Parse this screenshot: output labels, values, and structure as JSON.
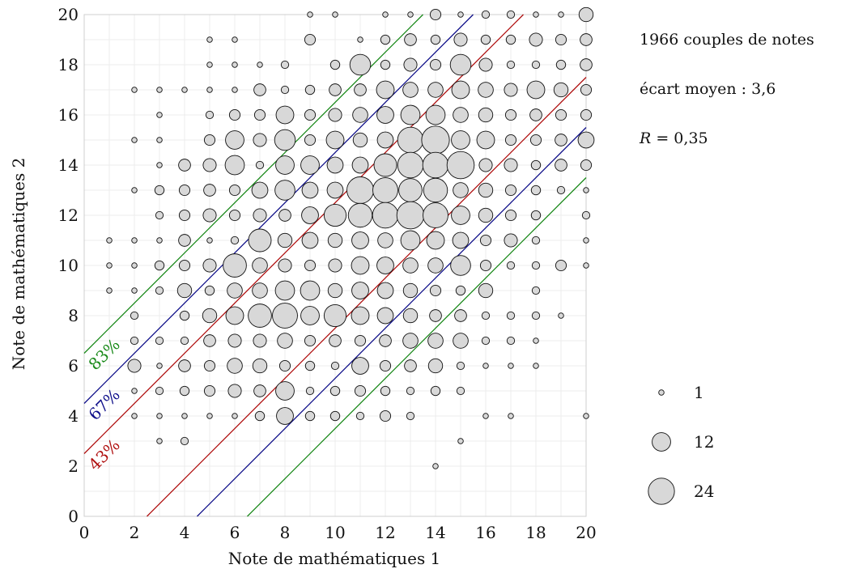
{
  "chart_data": {
    "type": "scatter",
    "subtype": "bubble",
    "xlabel": "Note de mathématiques 1",
    "ylabel": "Note de mathématiques 2",
    "xlim": [
      0,
      20
    ],
    "ylim": [
      0,
      20
    ],
    "x_ticks": [
      "0",
      "2",
      "4",
      "6",
      "8",
      "10",
      "12",
      "14",
      "16",
      "18",
      "20"
    ],
    "y_ticks": [
      "0",
      "2",
      "4",
      "6",
      "8",
      "10",
      "12",
      "14",
      "16",
      "18",
      "20"
    ],
    "grid": true,
    "bubble_color": "#d8d8d8",
    "bubble_stroke": "#111111",
    "stats": {
      "pairs": "1966 couples de notes",
      "mean_gap": "écart moyen : 3,6",
      "r_symbol": "R",
      "r_value": " = 0,35"
    },
    "legend": {
      "placement": "right",
      "entries": [
        {
          "label": "1",
          "count": 1
        },
        {
          "label": "12",
          "count": 12
        },
        {
          "label": "24",
          "count": 24
        }
      ]
    },
    "bands": [
      {
        "label": "43%",
        "offset": 2.5,
        "color": "#b01010"
      },
      {
        "label": "67%",
        "offset": 4.5,
        "color": "#10108a"
      },
      {
        "label": "83%",
        "offset": 6.5,
        "color": "#1a8a1a"
      }
    ],
    "points": [
      [
        9,
        20,
        1
      ],
      [
        10,
        20,
        1
      ],
      [
        12,
        20,
        1
      ],
      [
        13,
        20,
        1
      ],
      [
        14,
        20,
        4
      ],
      [
        15,
        20,
        1
      ],
      [
        16,
        20,
        2
      ],
      [
        17,
        20,
        2
      ],
      [
        18,
        20,
        1
      ],
      [
        19,
        20,
        1
      ],
      [
        20,
        20,
        7
      ],
      [
        5,
        19,
        1
      ],
      [
        6,
        19,
        1
      ],
      [
        9,
        19,
        4
      ],
      [
        11,
        19,
        1
      ],
      [
        12,
        19,
        3
      ],
      [
        13,
        19,
        5
      ],
      [
        14,
        19,
        3
      ],
      [
        15,
        19,
        6
      ],
      [
        16,
        19,
        3
      ],
      [
        17,
        19,
        3
      ],
      [
        18,
        19,
        6
      ],
      [
        19,
        19,
        4
      ],
      [
        20,
        19,
        5
      ],
      [
        5,
        18,
        1
      ],
      [
        6,
        18,
        1
      ],
      [
        7,
        18,
        1
      ],
      [
        8,
        18,
        2
      ],
      [
        10,
        18,
        3
      ],
      [
        11,
        18,
        15
      ],
      [
        12,
        18,
        3
      ],
      [
        13,
        18,
        6
      ],
      [
        14,
        18,
        4
      ],
      [
        15,
        18,
        15
      ],
      [
        16,
        18,
        6
      ],
      [
        17,
        18,
        2
      ],
      [
        18,
        18,
        2
      ],
      [
        19,
        18,
        3
      ],
      [
        20,
        18,
        5
      ],
      [
        2,
        17,
        1
      ],
      [
        3,
        17,
        1
      ],
      [
        4,
        17,
        1
      ],
      [
        5,
        17,
        1
      ],
      [
        6,
        17,
        1
      ],
      [
        7,
        17,
        5
      ],
      [
        8,
        17,
        2
      ],
      [
        9,
        17,
        3
      ],
      [
        10,
        17,
        5
      ],
      [
        11,
        17,
        5
      ],
      [
        12,
        17,
        11
      ],
      [
        13,
        17,
        8
      ],
      [
        14,
        17,
        8
      ],
      [
        15,
        17,
        11
      ],
      [
        16,
        17,
        8
      ],
      [
        17,
        17,
        6
      ],
      [
        18,
        17,
        11
      ],
      [
        19,
        17,
        7
      ],
      [
        20,
        17,
        4
      ],
      [
        3,
        16,
        1
      ],
      [
        5,
        16,
        2
      ],
      [
        6,
        16,
        4
      ],
      [
        7,
        16,
        4
      ],
      [
        8,
        16,
        11
      ],
      [
        9,
        16,
        4
      ],
      [
        10,
        16,
        6
      ],
      [
        11,
        16,
        8
      ],
      [
        12,
        16,
        10
      ],
      [
        13,
        16,
        13
      ],
      [
        14,
        16,
        13
      ],
      [
        15,
        16,
        8
      ],
      [
        16,
        16,
        7
      ],
      [
        17,
        16,
        4
      ],
      [
        18,
        16,
        5
      ],
      [
        19,
        16,
        4
      ],
      [
        20,
        16,
        4
      ],
      [
        2,
        15,
        1
      ],
      [
        3,
        15,
        1
      ],
      [
        5,
        15,
        4
      ],
      [
        6,
        15,
        12
      ],
      [
        7,
        15,
        6
      ],
      [
        8,
        15,
        15
      ],
      [
        9,
        15,
        4
      ],
      [
        10,
        15,
        11
      ],
      [
        11,
        15,
        7
      ],
      [
        12,
        15,
        9
      ],
      [
        13,
        15,
        23
      ],
      [
        14,
        15,
        27
      ],
      [
        15,
        15,
        12
      ],
      [
        16,
        15,
        11
      ],
      [
        17,
        15,
        4
      ],
      [
        18,
        15,
        4
      ],
      [
        19,
        15,
        5
      ],
      [
        20,
        15,
        9
      ],
      [
        3,
        14,
        1
      ],
      [
        4,
        14,
        5
      ],
      [
        5,
        14,
        6
      ],
      [
        6,
        14,
        13
      ],
      [
        7,
        14,
        2
      ],
      [
        8,
        14,
        12
      ],
      [
        9,
        14,
        12
      ],
      [
        10,
        14,
        9
      ],
      [
        11,
        14,
        9
      ],
      [
        12,
        14,
        18
      ],
      [
        13,
        14,
        23
      ],
      [
        14,
        14,
        23
      ],
      [
        15,
        14,
        26
      ],
      [
        16,
        14,
        6
      ],
      [
        17,
        14,
        6
      ],
      [
        18,
        14,
        3
      ],
      [
        19,
        14,
        5
      ],
      [
        20,
        14,
        4
      ],
      [
        2,
        13,
        1
      ],
      [
        3,
        13,
        3
      ],
      [
        4,
        13,
        4
      ],
      [
        5,
        13,
        5
      ],
      [
        6,
        13,
        4
      ],
      [
        7,
        13,
        9
      ],
      [
        8,
        13,
        14
      ],
      [
        9,
        13,
        9
      ],
      [
        10,
        13,
        9
      ],
      [
        11,
        13,
        25
      ],
      [
        12,
        13,
        22
      ],
      [
        13,
        13,
        19
      ],
      [
        14,
        13,
        20
      ],
      [
        15,
        13,
        8
      ],
      [
        16,
        13,
        7
      ],
      [
        17,
        13,
        4
      ],
      [
        18,
        13,
        3
      ],
      [
        19,
        13,
        2
      ],
      [
        20,
        13,
        1
      ],
      [
        3,
        12,
        2
      ],
      [
        4,
        12,
        4
      ],
      [
        5,
        12,
        6
      ],
      [
        6,
        12,
        4
      ],
      [
        7,
        12,
        6
      ],
      [
        8,
        12,
        5
      ],
      [
        9,
        12,
        10
      ],
      [
        10,
        12,
        17
      ],
      [
        11,
        12,
        20
      ],
      [
        12,
        12,
        23
      ],
      [
        13,
        12,
        26
      ],
      [
        14,
        12,
        22
      ],
      [
        15,
        12,
        12
      ],
      [
        16,
        12,
        7
      ],
      [
        17,
        12,
        4
      ],
      [
        18,
        12,
        3
      ],
      [
        20,
        12,
        2
      ],
      [
        1,
        11,
        1
      ],
      [
        2,
        11,
        1
      ],
      [
        3,
        11,
        1
      ],
      [
        4,
        11,
        5
      ],
      [
        5,
        11,
        1
      ],
      [
        6,
        11,
        2
      ],
      [
        7,
        11,
        18
      ],
      [
        8,
        11,
        7
      ],
      [
        9,
        11,
        9
      ],
      [
        10,
        11,
        7
      ],
      [
        11,
        11,
        10
      ],
      [
        12,
        11,
        8
      ],
      [
        13,
        11,
        13
      ],
      [
        14,
        11,
        11
      ],
      [
        15,
        11,
        9
      ],
      [
        16,
        11,
        4
      ],
      [
        17,
        11,
        6
      ],
      [
        18,
        11,
        2
      ],
      [
        20,
        11,
        1
      ],
      [
        1,
        10,
        1
      ],
      [
        2,
        10,
        1
      ],
      [
        3,
        10,
        3
      ],
      [
        4,
        10,
        4
      ],
      [
        5,
        10,
        6
      ],
      [
        6,
        10,
        19
      ],
      [
        7,
        10,
        8
      ],
      [
        8,
        10,
        6
      ],
      [
        9,
        10,
        4
      ],
      [
        10,
        10,
        6
      ],
      [
        11,
        10,
        11
      ],
      [
        12,
        10,
        10
      ],
      [
        13,
        10,
        8
      ],
      [
        14,
        10,
        8
      ],
      [
        15,
        10,
        14
      ],
      [
        16,
        10,
        4
      ],
      [
        17,
        10,
        2
      ],
      [
        18,
        10,
        2
      ],
      [
        19,
        10,
        4
      ],
      [
        20,
        10,
        1
      ],
      [
        1,
        9,
        1
      ],
      [
        2,
        9,
        1
      ],
      [
        3,
        9,
        2
      ],
      [
        4,
        9,
        7
      ],
      [
        5,
        9,
        3
      ],
      [
        6,
        9,
        8
      ],
      [
        7,
        9,
        8
      ],
      [
        8,
        9,
        13
      ],
      [
        9,
        9,
        13
      ],
      [
        10,
        9,
        7
      ],
      [
        11,
        9,
        10
      ],
      [
        12,
        9,
        9
      ],
      [
        13,
        9,
        7
      ],
      [
        14,
        9,
        4
      ],
      [
        15,
        9,
        3
      ],
      [
        16,
        9,
        7
      ],
      [
        18,
        9,
        2
      ],
      [
        2,
        8,
        2
      ],
      [
        4,
        8,
        3
      ],
      [
        5,
        8,
        7
      ],
      [
        6,
        8,
        11
      ],
      [
        7,
        8,
        19
      ],
      [
        8,
        8,
        22
      ],
      [
        9,
        8,
        12
      ],
      [
        10,
        8,
        17
      ],
      [
        11,
        8,
        11
      ],
      [
        12,
        8,
        9
      ],
      [
        13,
        8,
        7
      ],
      [
        14,
        8,
        5
      ],
      [
        15,
        8,
        5
      ],
      [
        16,
        8,
        2
      ],
      [
        17,
        8,
        2
      ],
      [
        18,
        8,
        2
      ],
      [
        19,
        8,
        1
      ],
      [
        2,
        7,
        2
      ],
      [
        3,
        7,
        2
      ],
      [
        4,
        7,
        2
      ],
      [
        5,
        7,
        5
      ],
      [
        6,
        7,
        6
      ],
      [
        7,
        7,
        6
      ],
      [
        8,
        7,
        8
      ],
      [
        9,
        7,
        4
      ],
      [
        10,
        7,
        5
      ],
      [
        11,
        7,
        4
      ],
      [
        12,
        7,
        5
      ],
      [
        13,
        7,
        8
      ],
      [
        14,
        7,
        8
      ],
      [
        15,
        7,
        8
      ],
      [
        16,
        7,
        2
      ],
      [
        17,
        7,
        2
      ],
      [
        18,
        7,
        1
      ],
      [
        2,
        6,
        6
      ],
      [
        3,
        6,
        1
      ],
      [
        4,
        6,
        5
      ],
      [
        5,
        6,
        4
      ],
      [
        6,
        6,
        8
      ],
      [
        7,
        6,
        7
      ],
      [
        8,
        6,
        4
      ],
      [
        9,
        6,
        3
      ],
      [
        10,
        6,
        2
      ],
      [
        11,
        6,
        10
      ],
      [
        12,
        6,
        4
      ],
      [
        13,
        6,
        5
      ],
      [
        14,
        6,
        7
      ],
      [
        15,
        6,
        2
      ],
      [
        16,
        6,
        1
      ],
      [
        17,
        6,
        1
      ],
      [
        18,
        6,
        1
      ],
      [
        2,
        5,
        1
      ],
      [
        3,
        5,
        2
      ],
      [
        4,
        5,
        3
      ],
      [
        5,
        5,
        4
      ],
      [
        6,
        5,
        6
      ],
      [
        7,
        5,
        5
      ],
      [
        8,
        5,
        12
      ],
      [
        9,
        5,
        2
      ],
      [
        10,
        5,
        3
      ],
      [
        11,
        5,
        4
      ],
      [
        12,
        5,
        3
      ],
      [
        13,
        5,
        2
      ],
      [
        14,
        5,
        3
      ],
      [
        15,
        5,
        2
      ],
      [
        2,
        4,
        1
      ],
      [
        3,
        4,
        1
      ],
      [
        4,
        4,
        1
      ],
      [
        5,
        4,
        1
      ],
      [
        6,
        4,
        1
      ],
      [
        7,
        4,
        3
      ],
      [
        8,
        4,
        10
      ],
      [
        9,
        4,
        3
      ],
      [
        10,
        4,
        3
      ],
      [
        11,
        4,
        2
      ],
      [
        12,
        4,
        4
      ],
      [
        13,
        4,
        2
      ],
      [
        16,
        4,
        1
      ],
      [
        17,
        4,
        1
      ],
      [
        20,
        4,
        1
      ],
      [
        3,
        3,
        1
      ],
      [
        4,
        3,
        2
      ],
      [
        15,
        3,
        1
      ],
      [
        14,
        2,
        1
      ]
    ]
  }
}
